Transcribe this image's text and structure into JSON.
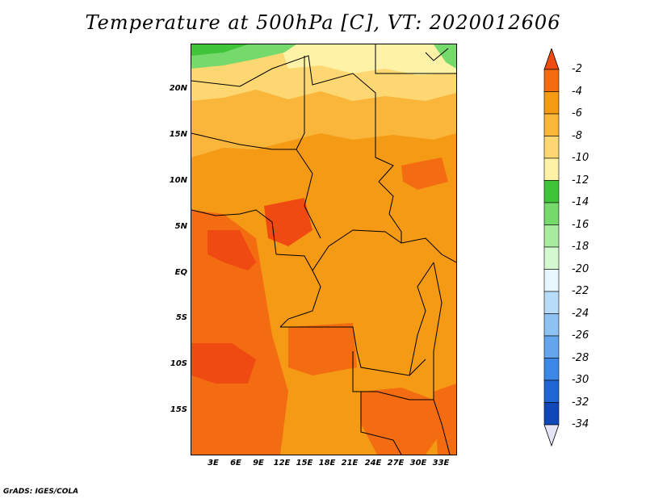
{
  "title": "Temperature at 500hPa [C], VT: 2020012606",
  "credit": "GrADS: IGES/COLA",
  "latitude_labels": [
    "20N",
    "15N",
    "10N",
    "5N",
    "EQ",
    "5S",
    "10S",
    "15S"
  ],
  "longitude_labels": [
    "3E",
    "6E",
    "9E",
    "12E",
    "15E",
    "18E",
    "21E",
    "24E",
    "27E",
    "30E",
    "33E"
  ],
  "colorbar": {
    "labels": [
      "-2",
      "-4",
      "-6",
      "-8",
      "-10",
      "-12",
      "-14",
      "-16",
      "-18",
      "-20",
      "-22",
      "-24",
      "-26",
      "-28",
      "-30",
      "-32",
      "-34"
    ],
    "colors": [
      "#ee4a12",
      "#f46c12",
      "#f59a14",
      "#fab63a",
      "#fdd872",
      "#fdf2a6",
      "#3fc43a",
      "#76d96c",
      "#a8eca0",
      "#d4f8d0",
      "#e8f6ff",
      "#b8dcf8",
      "#8ec2f2",
      "#64a6ee",
      "#3c88e6",
      "#2066d2",
      "#1048b8",
      "#0c2878",
      "#e4e4f4"
    ]
  },
  "legend_colors": {
    "band_lt_minus2": "#ee4a12",
    "band_minus2_minus4": "#f46c12",
    "band_minus4_minus6": "#f59a14",
    "band_minus6_minus8": "#fab63a",
    "band_minus8_minus10": "#fdd872",
    "band_minus10_minus12": "#fdf2a6",
    "band_minus12_minus14": "#3fc43a",
    "band_minus14_minus16": "#76d96c"
  }
}
